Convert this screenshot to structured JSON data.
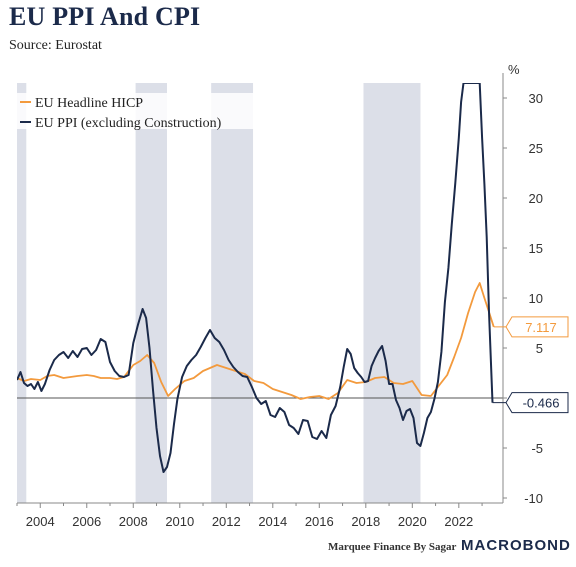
{
  "header": {
    "title": "EU PPI And CPI",
    "subtitle": "Source: Eurostat"
  },
  "footer": {
    "credit": "Marquee Finance By Sagar",
    "logo": "MACROBOND"
  },
  "chart_data": {
    "type": "line",
    "title": "EU PPI And CPI",
    "subtitle": "Source: Eurostat",
    "ylabel": "%",
    "xlim": [
      2003.0,
      2023.9
    ],
    "ylim": [
      -10.5,
      31.5
    ],
    "y_ticks": [
      -10,
      -5,
      0,
      5,
      10,
      15,
      20,
      25,
      30
    ],
    "x_ticks": [
      2004,
      2006,
      2008,
      2010,
      2012,
      2014,
      2016,
      2018,
      2020,
      2022
    ],
    "legend_position": "top-left",
    "grid": false,
    "zero_line": true,
    "recessions": [
      [
        2003.0,
        2003.4
      ],
      [
        2008.1,
        2009.45
      ],
      [
        2011.35,
        2013.15
      ],
      [
        2017.9,
        2020.35
      ]
    ],
    "callouts": [
      {
        "series": "EU Headline HICP",
        "label": "7.117",
        "value": 7.117,
        "color": "#f39a3d"
      },
      {
        "series": "EU PPI (excluding Construction)",
        "label": "-0.466",
        "value": -0.466,
        "color": "#1b2a4a"
      }
    ],
    "series": [
      {
        "name": "EU Headline HICP",
        "color": "#f39a3d",
        "x": [
          2003.0,
          2003.3,
          2003.6,
          2004.0,
          2004.3,
          2004.6,
          2005.0,
          2005.3,
          2005.6,
          2006.0,
          2006.3,
          2006.6,
          2007.0,
          2007.3,
          2007.6,
          2008.0,
          2008.3,
          2008.6,
          2008.9,
          2009.2,
          2009.5,
          2009.8,
          2010.2,
          2010.6,
          2011.0,
          2011.3,
          2011.6,
          2012.0,
          2012.4,
          2012.8,
          2013.2,
          2013.6,
          2014.0,
          2014.4,
          2014.8,
          2015.2,
          2015.6,
          2016.0,
          2016.4,
          2016.8,
          2017.2,
          2017.6,
          2018.0,
          2018.4,
          2018.8,
          2019.2,
          2019.6,
          2020.0,
          2020.4,
          2020.8,
          2021.2,
          2021.5,
          2021.8,
          2022.1,
          2022.4,
          2022.7,
          2022.9,
          2023.1,
          2023.3,
          2023.5
        ],
        "y": [
          2.0,
          1.7,
          1.9,
          1.8,
          2.2,
          2.3,
          2.0,
          2.1,
          2.2,
          2.3,
          2.2,
          2.0,
          2.0,
          1.9,
          2.1,
          3.3,
          3.7,
          4.3,
          3.5,
          1.6,
          0.2,
          0.9,
          1.7,
          2.0,
          2.7,
          3.0,
          3.3,
          3.0,
          2.7,
          2.4,
          1.7,
          1.5,
          0.9,
          0.6,
          0.3,
          -0.1,
          0.1,
          0.2,
          -0.1,
          0.5,
          1.8,
          1.5,
          1.6,
          2.0,
          2.1,
          1.5,
          1.4,
          1.7,
          0.3,
          0.2,
          1.4,
          2.3,
          4.1,
          6.0,
          8.5,
          10.6,
          11.5,
          10.0,
          8.6,
          7.117
        ]
      },
      {
        "name": "EU PPI (excluding Construction)",
        "color": "#1b2a4a",
        "x": [
          2003.0,
          2003.15,
          2003.3,
          2003.45,
          2003.6,
          2003.75,
          2003.9,
          2004.05,
          2004.2,
          2004.4,
          2004.6,
          2004.8,
          2005.0,
          2005.2,
          2005.4,
          2005.6,
          2005.8,
          2006.0,
          2006.2,
          2006.4,
          2006.6,
          2006.8,
          2007.0,
          2007.2,
          2007.4,
          2007.6,
          2007.8,
          2008.0,
          2008.2,
          2008.4,
          2008.55,
          2008.7,
          2008.85,
          2009.0,
          2009.15,
          2009.3,
          2009.45,
          2009.6,
          2009.75,
          2009.9,
          2010.1,
          2010.3,
          2010.5,
          2010.7,
          2010.9,
          2011.1,
          2011.3,
          2011.5,
          2011.7,
          2011.9,
          2012.1,
          2012.3,
          2012.5,
          2012.7,
          2012.9,
          2013.1,
          2013.3,
          2013.5,
          2013.7,
          2013.9,
          2014.1,
          2014.3,
          2014.5,
          2014.7,
          2014.9,
          2015.1,
          2015.3,
          2015.5,
          2015.7,
          2015.9,
          2016.1,
          2016.3,
          2016.5,
          2016.7,
          2016.9,
          2017.05,
          2017.2,
          2017.35,
          2017.5,
          2017.65,
          2017.8,
          2017.95,
          2018.1,
          2018.25,
          2018.4,
          2018.55,
          2018.7,
          2018.85,
          2019.0,
          2019.15,
          2019.3,
          2019.45,
          2019.6,
          2019.75,
          2019.9,
          2020.05,
          2020.2,
          2020.35,
          2020.5,
          2020.65,
          2020.8,
          2020.95,
          2021.1,
          2021.25,
          2021.4,
          2021.55,
          2021.7,
          2021.85,
          2022.0,
          2022.1,
          2022.2,
          2022.3,
          2022.4,
          2022.5,
          2022.6,
          2022.7,
          2022.8,
          2022.9,
          2023.0,
          2023.1,
          2023.2,
          2023.3,
          2023.45
        ],
        "y": [
          1.8,
          2.6,
          1.5,
          1.2,
          1.4,
          0.9,
          1.6,
          0.7,
          1.4,
          2.8,
          3.8,
          4.3,
          4.6,
          4.0,
          4.7,
          4.1,
          4.9,
          5.0,
          4.3,
          4.8,
          5.9,
          5.6,
          3.6,
          2.7,
          2.2,
          2.1,
          2.3,
          5.5,
          7.3,
          8.9,
          8.0,
          5.0,
          0.8,
          -3.0,
          -5.8,
          -7.4,
          -6.9,
          -5.5,
          -2.6,
          -0.1,
          2.1,
          3.2,
          3.8,
          4.3,
          5.1,
          6.0,
          6.8,
          6.0,
          5.6,
          4.8,
          3.8,
          3.1,
          2.6,
          2.2,
          2.1,
          1.1,
          0.0,
          -0.6,
          -0.3,
          -1.7,
          -1.9,
          -1.0,
          -1.4,
          -2.7,
          -3.0,
          -3.6,
          -2.2,
          -2.3,
          -3.9,
          -4.1,
          -3.3,
          -4.0,
          -1.7,
          -0.8,
          1.1,
          3.1,
          4.9,
          4.4,
          3.0,
          2.5,
          2.1,
          1.6,
          1.7,
          3.2,
          4.0,
          4.7,
          5.2,
          3.7,
          1.4,
          1.4,
          -0.2,
          -1.0,
          -2.2,
          -1.3,
          -1.1,
          -2.0,
          -4.5,
          -4.8,
          -3.5,
          -2.0,
          -1.4,
          -0.1,
          1.6,
          4.6,
          9.6,
          13.0,
          17.4,
          21.5,
          26.0,
          29.6,
          31.5,
          31.5,
          31.5,
          31.5,
          31.5,
          31.5,
          31.5,
          31.5,
          26.0,
          21.4,
          16.1,
          8.6,
          -0.466
        ]
      }
    ]
  }
}
